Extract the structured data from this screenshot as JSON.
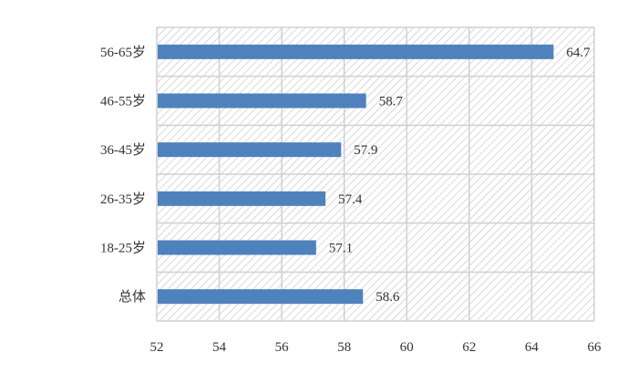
{
  "chart_data": {
    "type": "bar",
    "orientation": "horizontal",
    "categories": [
      "56-65岁",
      "46-55岁",
      "36-45岁",
      "26-35岁",
      "18-25岁",
      "总体"
    ],
    "values": [
      64.7,
      58.7,
      57.9,
      57.4,
      57.1,
      58.6
    ],
    "data_labels": [
      "64.7",
      "58.7",
      "57.9",
      "57.4",
      "57.1",
      "58.6"
    ],
    "xlim": [
      52,
      66
    ],
    "x_ticks": [
      52,
      54,
      56,
      58,
      60,
      62,
      64,
      66
    ],
    "x_tick_labels": [
      "52",
      "54",
      "56",
      "58",
      "60",
      "62",
      "64",
      "66"
    ],
    "grid": true,
    "background_pattern": "diagonal-hatch",
    "bar_color": "#4f81bd",
    "grid_color": "#d0d0d0",
    "title": "",
    "xlabel": "",
    "ylabel": ""
  }
}
